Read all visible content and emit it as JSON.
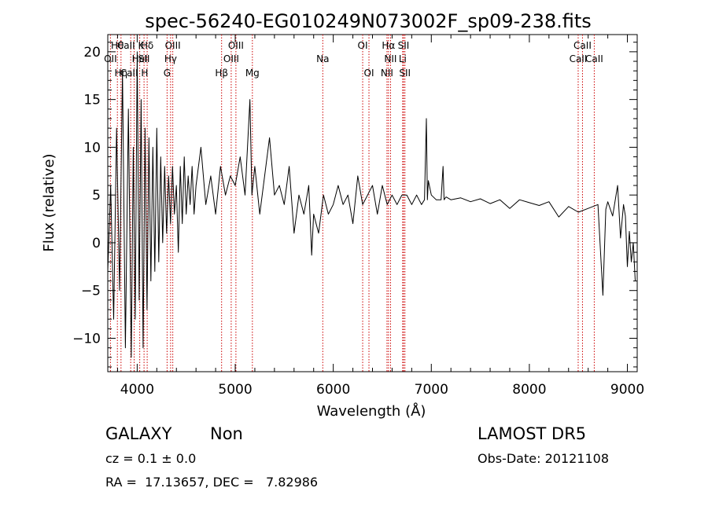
{
  "chart_data": {
    "type": "line",
    "title": "spec-56240-EG010249N073002F_sp09-238.fits",
    "xlabel": "Wavelength (Å)",
    "ylabel": "Flux (relative)",
    "xlim": [
      3700,
      9100
    ],
    "ylim": [
      -13.5,
      21.8
    ],
    "x_ticks": [
      4000,
      5000,
      6000,
      7000,
      8000,
      9000
    ],
    "y_ticks": [
      -10,
      -5,
      0,
      5,
      10,
      15,
      20
    ],
    "x_tick_labels": [
      "4000",
      "5000",
      "6000",
      "7000",
      "8000",
      "9000"
    ],
    "y_tick_labels": [
      "−10",
      "−5",
      "0",
      "5",
      "10",
      "15",
      "20"
    ],
    "line_color": "#000000",
    "marker_color": "#cc0000",
    "series": [
      {
        "x": [
          3700,
          3730,
          3760,
          3790,
          3820,
          3850,
          3880,
          3910,
          3940,
          3960,
          3980,
          4000,
          4020,
          4040,
          4060,
          4080,
          4100,
          4120,
          4140,
          4160,
          4180,
          4200,
          4220,
          4240,
          4260,
          4280,
          4300,
          4320,
          4340,
          4360,
          4380,
          4400,
          4420,
          4440,
          4460,
          4480,
          4500,
          4520,
          4540,
          4560,
          4580,
          4600,
          4650,
          4700,
          4750,
          4800,
          4850,
          4900,
          4950,
          5000,
          5050,
          5100,
          5150,
          5170,
          5200,
          5250,
          5300,
          5350,
          5400,
          5450,
          5500,
          5550,
          5600,
          5650,
          5700,
          5750,
          5780,
          5800,
          5850,
          5900,
          5950,
          6000,
          6050,
          6100,
          6150,
          6200,
          6250,
          6300,
          6350,
          6400,
          6450,
          6500,
          6550,
          6600,
          6650,
          6700,
          6750,
          6800,
          6850,
          6900,
          6930,
          6950,
          6960,
          6970,
          7000,
          7050,
          7100,
          7120,
          7130,
          7150,
          7200,
          7300,
          7400,
          7500,
          7600,
          7700,
          7800,
          7900,
          8000,
          8100,
          8200,
          8300,
          8400,
          8500,
          8600,
          8700,
          8750,
          8780,
          8800,
          8850,
          8900,
          8930,
          8960,
          8980,
          9000,
          9020,
          9040,
          9060,
          9080
        ],
        "y": [
          -3,
          6,
          -8,
          12,
          -5,
          18,
          -11,
          14,
          -12,
          10,
          -8,
          20,
          -6,
          15,
          -11,
          12,
          -7,
          11,
          -4,
          10,
          -3,
          12,
          -2,
          9,
          0,
          8,
          1,
          7,
          2,
          8,
          3,
          6,
          -1,
          8,
          2,
          9,
          3,
          7,
          4,
          8,
          3,
          6,
          10,
          4,
          7,
          3,
          8,
          5,
          7,
          6,
          9,
          5,
          15,
          5,
          8,
          3,
          7,
          11,
          5,
          6,
          4,
          8,
          1,
          5,
          3,
          6,
          -1.3,
          3,
          1,
          5,
          3,
          4,
          6,
          4,
          5,
          2,
          7,
          4,
          5,
          6,
          3,
          6,
          4,
          5,
          4,
          5,
          5,
          4,
          5,
          4,
          4.5,
          13,
          4.5,
          6.5,
          5,
          4.5,
          4.5,
          8,
          4.5,
          4.8,
          4.5,
          4.7,
          4.3,
          4.6,
          4.1,
          4.5,
          3.6,
          4.5,
          4.2,
          3.9,
          4.3,
          2.7,
          3.8,
          3.2,
          3.6,
          4.0,
          -5.5,
          3.5,
          4.3,
          2.8,
          6.0,
          0.5,
          4.0,
          2.8,
          -2.5,
          1.2,
          -2.0,
          0.0,
          -4.0
        ]
      }
    ],
    "lines": [
      {
        "label": "OII",
        "x": 3727,
        "row": 2
      },
      {
        "label": "Hθ",
        "x": 3798,
        "row": 1
      },
      {
        "label": "Hη",
        "x": 3835,
        "row": 3
      },
      {
        "label": "CaII K",
        "x": 3934,
        "row": 1
      },
      {
        "label": "CaII H",
        "x": 3969,
        "row": 3
      },
      {
        "label": "HeI",
        "x": 4026,
        "row": 2
      },
      {
        "label": "SII",
        "x": 4070,
        "row": 2
      },
      {
        "label": "Hδ",
        "x": 4102,
        "row": 1
      },
      {
        "label": "G",
        "x": 4305,
        "row": 3
      },
      {
        "label": "Hγ",
        "x": 4341,
        "row": 2
      },
      {
        "label": "OIII",
        "x": 4363,
        "row": 1
      },
      {
        "label": "Hβ",
        "x": 4861,
        "row": 3
      },
      {
        "label": "OIII",
        "x": 4959,
        "row": 2
      },
      {
        "label": "OIII",
        "x": 5007,
        "row": 1
      },
      {
        "label": "Mg",
        "x": 5175,
        "row": 3
      },
      {
        "label": "Na",
        "x": 5893,
        "row": 2
      },
      {
        "label": "OI",
        "x": 6300,
        "row": 1
      },
      {
        "label": "OI",
        "x": 6364,
        "row": 3
      },
      {
        "label": "NII",
        "x": 6548,
        "row": 3
      },
      {
        "label": "Hα",
        "x": 6563,
        "row": 1
      },
      {
        "label": "NII",
        "x": 6584,
        "row": 2
      },
      {
        "label": "Li",
        "x": 6708,
        "row": 2
      },
      {
        "label": "SII",
        "x": 6717,
        "row": 1
      },
      {
        "label": "SII",
        "x": 6731,
        "row": 3
      },
      {
        "label": "CaII",
        "x": 8498,
        "row": 2
      },
      {
        "label": "CaII",
        "x": 8542,
        "row": 1
      },
      {
        "label": "CaII",
        "x": 8662,
        "row": 2
      }
    ]
  },
  "info": {
    "classification": "GALAXY",
    "subclass": "Non",
    "survey": "LAMOST DR5",
    "cz": "cz = 0.1 ± 0.0",
    "obs_date": "Obs-Date: 20121108",
    "coords": "RA =  17.13657, DEC =   7.82986"
  }
}
